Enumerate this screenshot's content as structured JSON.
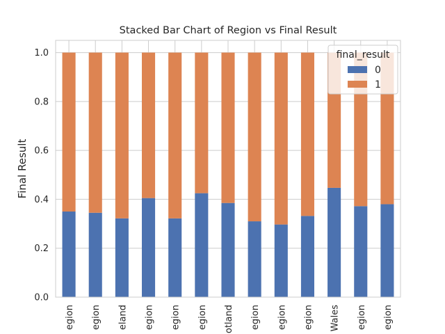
{
  "chart_data": {
    "type": "bar",
    "stacked": true,
    "title": "Stacked Bar Chart of Region vs Final Result",
    "xlabel": "",
    "ylabel": "Final Result",
    "ylim": [
      0,
      1.05
    ],
    "yticks": [
      0.0,
      0.2,
      0.4,
      0.6,
      0.8,
      1.0
    ],
    "ytick_labels": [
      "0.0",
      "0.2",
      "0.4",
      "0.6",
      "0.8",
      "1.0"
    ],
    "grid": true,
    "legend_position": "top-right",
    "categories": [
      "egion",
      "egion",
      "eland",
      "egion",
      "egion",
      "egion",
      "otland",
      "egion",
      "egion",
      "egion",
      "Wales",
      "egion",
      "egion"
    ],
    "series": [
      {
        "name": "0",
        "values": [
          0.35,
          0.345,
          0.322,
          0.405,
          0.322,
          0.425,
          0.385,
          0.31,
          0.297,
          0.332,
          0.447,
          0.372,
          0.38
        ]
      },
      {
        "name": "1",
        "values": [
          0.65,
          0.655,
          0.678,
          0.595,
          0.678,
          0.575,
          0.615,
          0.69,
          0.703,
          0.668,
          0.553,
          0.628,
          0.62
        ]
      }
    ],
    "legend_title": "final_result",
    "colors": {
      "0": "#4c72b0",
      "1": "#dd8452"
    }
  }
}
